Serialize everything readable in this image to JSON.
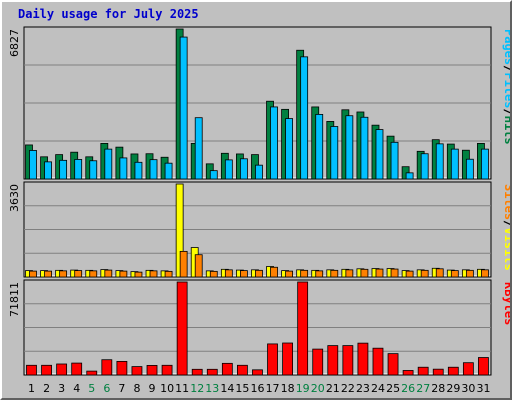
{
  "chart_data": {
    "type": "bar",
    "title": "Daily usage for July 2025",
    "categories": [
      "1",
      "2",
      "3",
      "4",
      "5",
      "6",
      "7",
      "8",
      "9",
      "10",
      "11",
      "12",
      "13",
      "14",
      "15",
      "16",
      "17",
      "18",
      "19",
      "20",
      "21",
      "22",
      "23",
      "24",
      "25",
      "26",
      "27",
      "28",
      "29",
      "30",
      "31"
    ],
    "weekend_days": [
      "5",
      "6",
      "12",
      "13",
      "19",
      "20",
      "26",
      "27"
    ],
    "colors": {
      "hits": "#008040",
      "files": "#00c0ff",
      "pages": "#00c0ff",
      "visits": "#ffff00",
      "sites": "#ff8000",
      "kbytes": "#ff0000",
      "weekend_tick": "#008040",
      "weekday_tick": "#000000",
      "title": "#0000cc"
    },
    "panels": [
      {
        "name": "top",
        "ymax_label": "6827",
        "ylim": [
          0,
          6827
        ],
        "right_label": [
          "Pages",
          "/",
          "Files",
          "/",
          "Hits"
        ],
        "right_label_colors": [
          "#00c0ff",
          "#000000",
          "#00c0ff",
          "#000000",
          "#008040"
        ],
        "series": [
          {
            "name": "Hits",
            "values": [
              1550,
              1010,
              1110,
              1220,
              1010,
              1620,
              1450,
              1140,
              1150,
              990,
              6827,
              1620,
              690,
              1170,
              1140,
              1110,
              3540,
              3170,
              5860,
              3280,
              2620,
              3150,
              3050,
              2450,
              1950,
              560,
              1260,
              1790,
              1590,
              1310,
              1620
            ]
          },
          {
            "name": "Files",
            "values": [
              1300,
              780,
              850,
              890,
              830,
              1360,
              960,
              760,
              880,
              720,
              6460,
              2790,
              380,
              870,
              920,
              630,
              3280,
              2750,
              5560,
              2940,
              2390,
              2880,
              2810,
              2250,
              1670,
              280,
              1150,
              1600,
              1360,
              900,
              1360
            ]
          }
        ]
      },
      {
        "name": "middle",
        "ymax_label": "3630",
        "ylim": [
          0,
          3630
        ],
        "right_label": [
          "Sites",
          "/",
          "Visits"
        ],
        "right_label_colors": [
          "#ff8000",
          "#000000",
          "#ffff00"
        ],
        "series": [
          {
            "name": "Visits",
            "values": [
              250,
              250,
              260,
              270,
              260,
              290,
              250,
              210,
              260,
              240,
              3630,
              1150,
              240,
              300,
              270,
              280,
              410,
              250,
              280,
              260,
              280,
              300,
              320,
              330,
              330,
              250,
              280,
              340,
              270,
              280,
              300
            ]
          },
          {
            "name": "Sites",
            "values": [
              230,
              230,
              240,
              250,
              240,
              270,
              230,
              190,
              240,
              220,
              1000,
              870,
              220,
              280,
              250,
              260,
              380,
              230,
              260,
              240,
              260,
              280,
              300,
              310,
              310,
              230,
              260,
              320,
              250,
              260,
              280
            ]
          }
        ]
      },
      {
        "name": "bottom",
        "ymax_label": "71811",
        "ylim": [
          0,
          71811
        ],
        "right_label": [
          "KBytes"
        ],
        "right_label_colors": [
          "#ff0000"
        ],
        "series": [
          {
            "name": "KBytes",
            "values": [
              7500,
              7500,
              8500,
              9200,
              3000,
              11800,
              10500,
              6500,
              7400,
              7500,
              71811,
              4400,
              4400,
              9000,
              7500,
              4000,
              24000,
              24700,
              71811,
              20000,
              22700,
              22700,
              24600,
              20700,
              16500,
              3500,
              6000,
              4500,
              6000,
              9500,
              13500
            ]
          }
        ]
      }
    ]
  }
}
